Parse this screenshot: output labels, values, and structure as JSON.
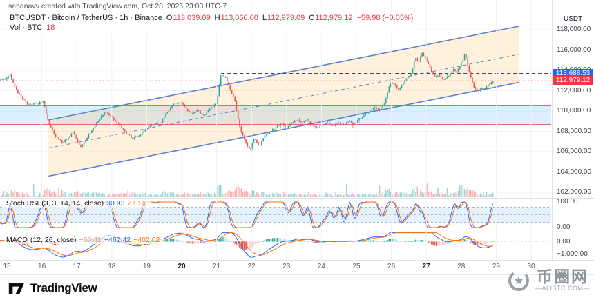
{
  "header": {
    "attribution": "sahanavv created with TradingView.com, Oct 28, 2025 23:03 UTC-7"
  },
  "legend": {
    "title": "BTCUSDT · Bitcoin / TetherUS · 1h · Binance",
    "o_label": "O",
    "o": "113,039.09",
    "h_label": "H",
    "h": "113,060.00",
    "l_label": "L",
    "l": "112,979.09",
    "c_label": "C",
    "c": "112,979.12",
    "change": "−59.98 (−0.05%)",
    "vol_label": "Vol · BTC",
    "vol_value": "18"
  },
  "branding": {
    "tradingview": "TradingView"
  },
  "watermark": {
    "cn": "币圈网",
    "site": "—ALIBTC.COM—"
  },
  "chart_data": {
    "type": "candlestick",
    "symbol": "BTCUSDT",
    "exchange": "Binance",
    "interval": "1h",
    "title": "BTCUSDT · Bitcoin / TetherUS · 1h · Binance",
    "ohlc": {
      "open": 113039.09,
      "high": 113060.0,
      "low": 112979.09,
      "close": 112979.12,
      "change": -59.98,
      "change_pct": -0.05
    },
    "volume_btc": 18,
    "y_axis": {
      "currency": "USDT",
      "ticks": [
        118000,
        116000,
        114000,
        112000,
        110000,
        108000,
        106000,
        104000,
        102000
      ]
    },
    "x_axis": {
      "first_day": 15,
      "days": [
        {
          "label": "15",
          "bold": false
        },
        {
          "label": "16",
          "bold": false
        },
        {
          "label": "17",
          "bold": false
        },
        {
          "label": "18",
          "bold": false
        },
        {
          "label": "19",
          "bold": false
        },
        {
          "label": "20",
          "bold": true
        },
        {
          "label": "21",
          "bold": false
        },
        {
          "label": "22",
          "bold": false
        },
        {
          "label": "23",
          "bold": false
        },
        {
          "label": "24",
          "bold": false
        },
        {
          "label": "25",
          "bold": false
        },
        {
          "label": "26",
          "bold": false
        },
        {
          "label": "27",
          "bold": true
        },
        {
          "label": "28",
          "bold": false
        },
        {
          "label": "29",
          "bold": false
        },
        {
          "label": "30",
          "bold": false
        }
      ]
    },
    "price_lines": [
      {
        "id": "alert",
        "label": "113,688.53",
        "price": 113688.53,
        "color": "#2962ff",
        "style": "dashed",
        "from_day": 21.13
      },
      {
        "id": "last",
        "label": "112,979.12",
        "price": 112979.12,
        "color": "#f23645",
        "style": "dotted",
        "from_day": null
      }
    ],
    "h_levels": {
      "upper": 110542,
      "lower": 108644,
      "line_color": "#f23645",
      "band_color": "rgba(100,181,246,0.22)"
    },
    "channel": {
      "from_day": 16.19,
      "to_day": 29.65,
      "top_from": 109119,
      "top_to": 118339,
      "offset": -5527,
      "line_color": "#5b7fd0",
      "fill": "rgba(255,167,38,0.16)"
    },
    "price_path": [
      [
        13.2,
        112500
      ],
      [
        13.8,
        112800
      ],
      [
        14.4,
        113000
      ],
      [
        14.96,
        113100
      ],
      [
        15.08,
        113600
      ],
      [
        15.3,
        111800
      ],
      [
        15.59,
        110700
      ],
      [
        15.89,
        110700
      ],
      [
        16.03,
        111000
      ],
      [
        16.19,
        108850
      ],
      [
        16.38,
        107600
      ],
      [
        16.58,
        106900
      ],
      [
        16.78,
        107400
      ],
      [
        16.9,
        108000
      ],
      [
        17.02,
        106900
      ],
      [
        17.13,
        106500
      ],
      [
        17.27,
        107300
      ],
      [
        17.47,
        108300
      ],
      [
        17.67,
        109300
      ],
      [
        17.81,
        109900
      ],
      [
        18.0,
        109400
      ],
      [
        18.2,
        108700
      ],
      [
        18.4,
        107900
      ],
      [
        18.6,
        107300
      ],
      [
        18.79,
        107600
      ],
      [
        18.99,
        108300
      ],
      [
        19.19,
        108650
      ],
      [
        19.39,
        108800
      ],
      [
        19.58,
        109900
      ],
      [
        19.78,
        110700
      ],
      [
        19.98,
        110900
      ],
      [
        20.14,
        110100
      ],
      [
        20.3,
        109700
      ],
      [
        20.45,
        110100
      ],
      [
        20.63,
        109500
      ],
      [
        20.83,
        110300
      ],
      [
        20.99,
        110700
      ],
      [
        21.13,
        113700
      ],
      [
        21.26,
        113250
      ],
      [
        21.4,
        112000
      ],
      [
        21.52,
        111000
      ],
      [
        21.68,
        108100
      ],
      [
        21.84,
        106900
      ],
      [
        21.96,
        106100
      ],
      [
        22.07,
        107300
      ],
      [
        22.23,
        106500
      ],
      [
        22.37,
        107600
      ],
      [
        22.55,
        108000
      ],
      [
        22.71,
        108500
      ],
      [
        22.87,
        108800
      ],
      [
        23.0,
        108300
      ],
      [
        23.14,
        108800
      ],
      [
        23.3,
        109200
      ],
      [
        23.44,
        108800
      ],
      [
        23.58,
        109250
      ],
      [
        23.73,
        108650
      ],
      [
        23.89,
        108300
      ],
      [
        24.03,
        108600
      ],
      [
        24.19,
        108850
      ],
      [
        24.33,
        108500
      ],
      [
        24.49,
        108850
      ],
      [
        24.62,
        108500
      ],
      [
        24.78,
        109050
      ],
      [
        24.92,
        108700
      ],
      [
        25.08,
        109250
      ],
      [
        25.22,
        109600
      ],
      [
        25.38,
        110000
      ],
      [
        25.51,
        110400
      ],
      [
        25.67,
        110100
      ],
      [
        25.81,
        110800
      ],
      [
        25.93,
        112400
      ],
      [
        26.05,
        112850
      ],
      [
        26.19,
        112000
      ],
      [
        26.32,
        112650
      ],
      [
        26.46,
        113300
      ],
      [
        26.58,
        113700
      ],
      [
        26.68,
        115300
      ],
      [
        26.78,
        114750
      ],
      [
        26.88,
        115750
      ],
      [
        26.98,
        115100
      ],
      [
        27.08,
        114400
      ],
      [
        27.18,
        113700
      ],
      [
        27.28,
        113400
      ],
      [
        27.37,
        113600
      ],
      [
        27.47,
        113100
      ],
      [
        27.57,
        113300
      ],
      [
        27.67,
        113600
      ],
      [
        27.77,
        114150
      ],
      [
        27.87,
        113800
      ],
      [
        27.97,
        114500
      ],
      [
        28.03,
        114900
      ],
      [
        28.11,
        115700
      ],
      [
        28.19,
        114400
      ],
      [
        28.27,
        113400
      ],
      [
        28.35,
        112400
      ],
      [
        28.43,
        112150
      ],
      [
        28.5,
        112000
      ],
      [
        28.58,
        112300
      ],
      [
        28.66,
        112150
      ],
      [
        28.74,
        112500
      ],
      [
        28.82,
        112700
      ],
      [
        28.9,
        112979
      ]
    ],
    "indicators": {
      "stoch_rsi": {
        "name": "Stoch RSI",
        "params": "(3, 3, 14, 14, close)",
        "k": "30.93",
        "d": "27.14",
        "k_color": "#2962ff",
        "d_color": "#ff6d00",
        "levels": [
          80,
          50,
          20
        ],
        "scale_ticks": [
          {
            "v": 100,
            "label": "100.00"
          },
          {
            "v": 0,
            "label": "0.00"
          }
        ]
      },
      "macd": {
        "name": "MACD",
        "params": "(12, 26, close)",
        "hist": "−60.41",
        "macd": "−462.42",
        "signal": "−402.02",
        "macd_color": "#2962ff",
        "signal_color": "#ff6d00",
        "scale_ticks": [
          {
            "v": 0,
            "label": "0.00"
          },
          {
            "v": -1000,
            "label": "−1,000.00"
          }
        ]
      }
    },
    "candle_colors": {
      "up": "#26a69a",
      "down": "#ef5350"
    }
  }
}
